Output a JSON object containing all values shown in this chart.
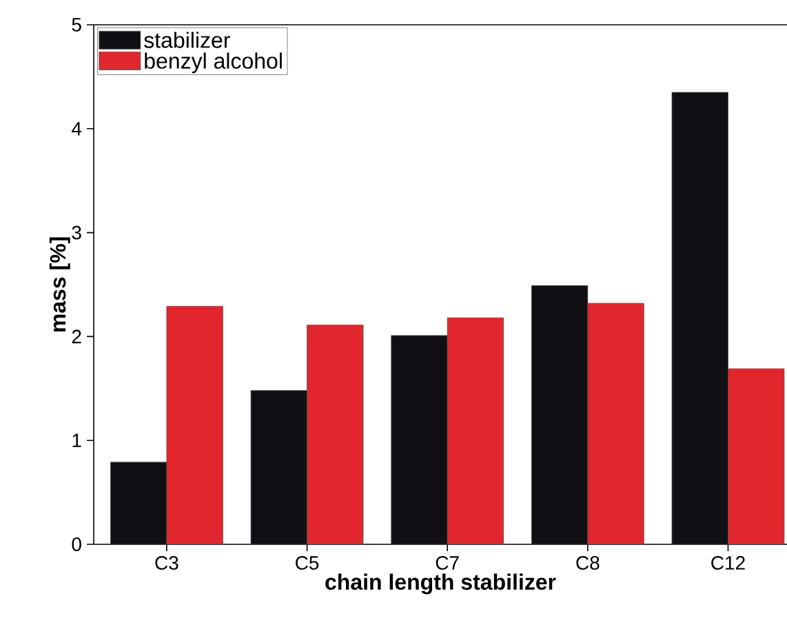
{
  "chart_data": {
    "type": "bar",
    "xlabel": "chain length stabilizer",
    "ylabel": "mass [%]",
    "categories": [
      "C3",
      "C5",
      "C7",
      "C8",
      "C12"
    ],
    "series": [
      {
        "name": "stabilizer",
        "color": "#101014",
        "values": [
          0.79,
          1.48,
          2.01,
          2.49,
          4.35
        ]
      },
      {
        "name": "benzyl alcohol",
        "color": "#e2262e",
        "values": [
          2.29,
          2.11,
          2.18,
          2.32,
          1.69
        ]
      }
    ],
    "ylim": [
      0,
      5
    ],
    "yticks": [
      0,
      1,
      2,
      3,
      4,
      5
    ],
    "legend": "top left"
  }
}
